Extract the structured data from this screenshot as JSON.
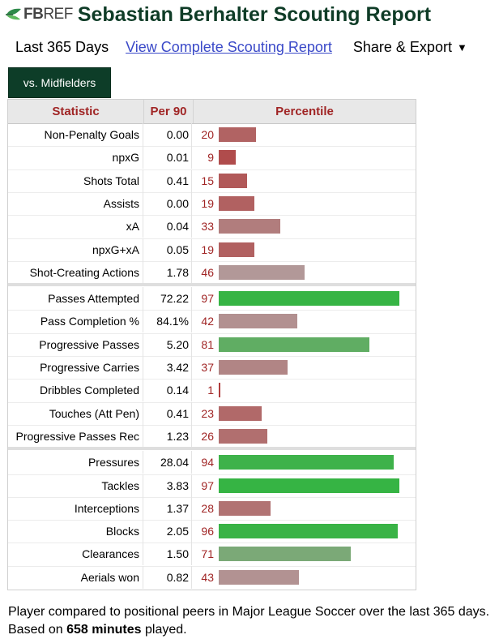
{
  "header": {
    "logo_fb": "FB",
    "logo_ref": "REF",
    "title": "Sebastian Berhalter Scouting Report"
  },
  "subnav": {
    "period": "Last 365 Days",
    "link": "View Complete Scouting Report",
    "share": "Share & Export",
    "share_caret": "▼"
  },
  "tab": {
    "label": "vs. Midfielders"
  },
  "table": {
    "headers": {
      "statistic": "Statistic",
      "per90": "Per 90",
      "percentile": "Percentile"
    },
    "colors": {
      "low": "#b04a4a",
      "high": "#2eb53e",
      "header_text": "#a02525"
    },
    "groups": [
      [
        {
          "stat": "Non-Penalty Goals",
          "per90": "0.00",
          "pct": "20"
        },
        {
          "stat": "npxG",
          "per90": "0.01",
          "pct": "9"
        },
        {
          "stat": "Shots Total",
          "per90": "0.41",
          "pct": "15"
        },
        {
          "stat": "Assists",
          "per90": "0.00",
          "pct": "19"
        },
        {
          "stat": "xA",
          "per90": "0.04",
          "pct": "33"
        },
        {
          "stat": "npxG+xA",
          "per90": "0.05",
          "pct": "19"
        },
        {
          "stat": "Shot-Creating Actions",
          "per90": "1.78",
          "pct": "46"
        }
      ],
      [
        {
          "stat": "Passes Attempted",
          "per90": "72.22",
          "pct": "97"
        },
        {
          "stat": "Pass Completion %",
          "per90": "84.1%",
          "pct": "42"
        },
        {
          "stat": "Progressive Passes",
          "per90": "5.20",
          "pct": "81"
        },
        {
          "stat": "Progressive Carries",
          "per90": "3.42",
          "pct": "37"
        },
        {
          "stat": "Dribbles Completed",
          "per90": "0.14",
          "pct": "1"
        },
        {
          "stat": "Touches (Att Pen)",
          "per90": "0.41",
          "pct": "23"
        },
        {
          "stat": "Progressive Passes Rec",
          "per90": "1.23",
          "pct": "26"
        }
      ],
      [
        {
          "stat": "Pressures",
          "per90": "28.04",
          "pct": "94"
        },
        {
          "stat": "Tackles",
          "per90": "3.83",
          "pct": "97"
        },
        {
          "stat": "Interceptions",
          "per90": "1.37",
          "pct": "28"
        },
        {
          "stat": "Blocks",
          "per90": "2.05",
          "pct": "96"
        },
        {
          "stat": "Clearances",
          "per90": "1.50",
          "pct": "71"
        },
        {
          "stat": "Aerials won",
          "per90": "0.82",
          "pct": "43"
        }
      ]
    ]
  },
  "footnote": {
    "before": "Player compared to positional peers in Major League Soccer over the last 365 days. Based on ",
    "minutes": "658 minutes",
    "after": " played."
  }
}
